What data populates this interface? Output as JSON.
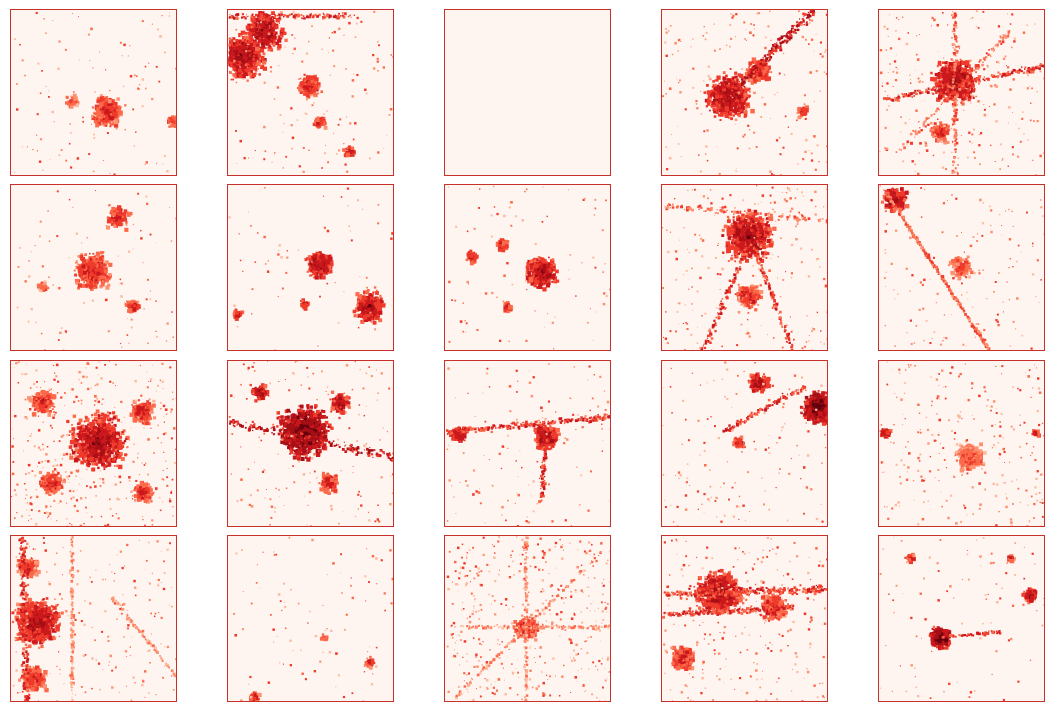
{
  "figure": {
    "rows": 4,
    "cols": 5,
    "colormap": "Reds",
    "background_color": "#fff5f0",
    "frame_color": "#c8312a",
    "panel_type": "urban-density-map"
  },
  "panels": [
    {
      "id": "r1c1",
      "pattern": "small-city-center"
    },
    {
      "id": "r1c2",
      "pattern": "dense-top-left-sprawl"
    },
    {
      "id": "r1c3",
      "pattern": "empty"
    },
    {
      "id": "r1c4",
      "pattern": "city-with-diagonal-corridor"
    },
    {
      "id": "r1c5",
      "pattern": "radial-city"
    },
    {
      "id": "r2c1",
      "pattern": "small-city-center"
    },
    {
      "id": "r2c2",
      "pattern": "scattered-towns"
    },
    {
      "id": "r2c3",
      "pattern": "clusters-left"
    },
    {
      "id": "r2c4",
      "pattern": "large-city-top"
    },
    {
      "id": "r2c5",
      "pattern": "diagonal-line-top-left"
    },
    {
      "id": "r3c1",
      "pattern": "widespread-settlement"
    },
    {
      "id": "r3c2",
      "pattern": "large-dense-city"
    },
    {
      "id": "r3c3",
      "pattern": "linear-corridor"
    },
    {
      "id": "r3c4",
      "pattern": "dense-right-edge"
    },
    {
      "id": "r3c5",
      "pattern": "faint-center"
    },
    {
      "id": "r4c1",
      "pattern": "dense-left-edge"
    },
    {
      "id": "r4c2",
      "pattern": "sparse-dots"
    },
    {
      "id": "r4c3",
      "pattern": "faint-radial"
    },
    {
      "id": "r4c4",
      "pattern": "dense-band-top"
    },
    {
      "id": "r4c5",
      "pattern": "compact-city"
    }
  ]
}
